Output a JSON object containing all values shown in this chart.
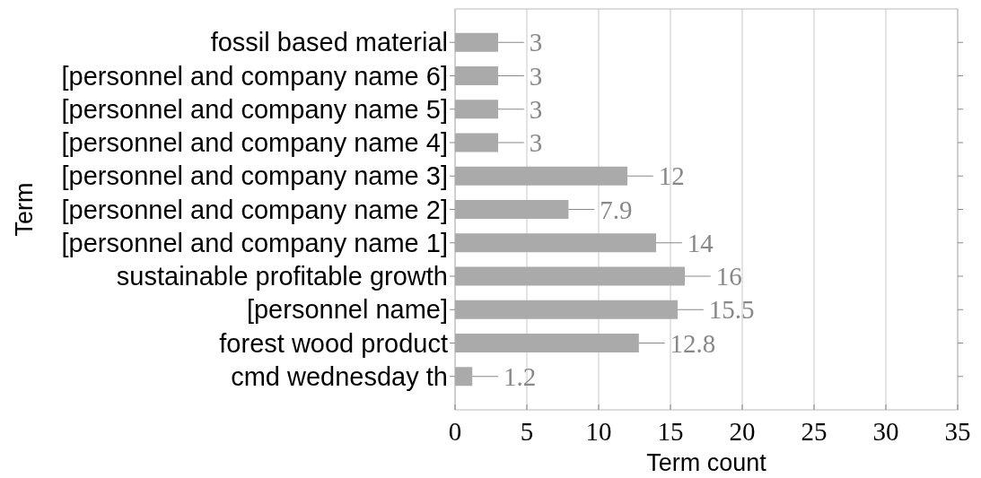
{
  "chart_data": {
    "type": "bar",
    "orientation": "horizontal",
    "xlabel": "Term count",
    "ylabel": "Term",
    "categories": [
      "fossil based material",
      "[personnel and company name 6]",
      "[personnel and company name 5]",
      "[personnel and company name 4]",
      "[personnel and company name 3]",
      "[personnel and company name 2]",
      "[personnel and company name 1]",
      "sustainable profitable growth",
      "[personnel name]",
      "forest wood product",
      "cmd wednesday th"
    ],
    "values": [
      3,
      3,
      3,
      3,
      12,
      7.9,
      14,
      16,
      15.5,
      12.8,
      1.2
    ],
    "errors": [
      [
        3,
        4.8
      ],
      [
        3,
        4.8
      ],
      [
        3,
        4.8
      ],
      [
        3,
        4.8
      ],
      [
        12,
        13.8
      ],
      [
        7.9,
        9.7
      ],
      [
        14,
        15.8
      ],
      [
        16,
        17.8
      ],
      [
        15.5,
        17.3
      ],
      [
        12.8,
        14.6
      ],
      [
        1.2,
        3
      ]
    ],
    "color": "#aaaaaa",
    "data_labels": true,
    "xlim": [
      0,
      35
    ],
    "xticks": [
      0,
      5,
      10,
      15,
      20,
      25,
      30,
      35
    ],
    "grid": "x"
  }
}
